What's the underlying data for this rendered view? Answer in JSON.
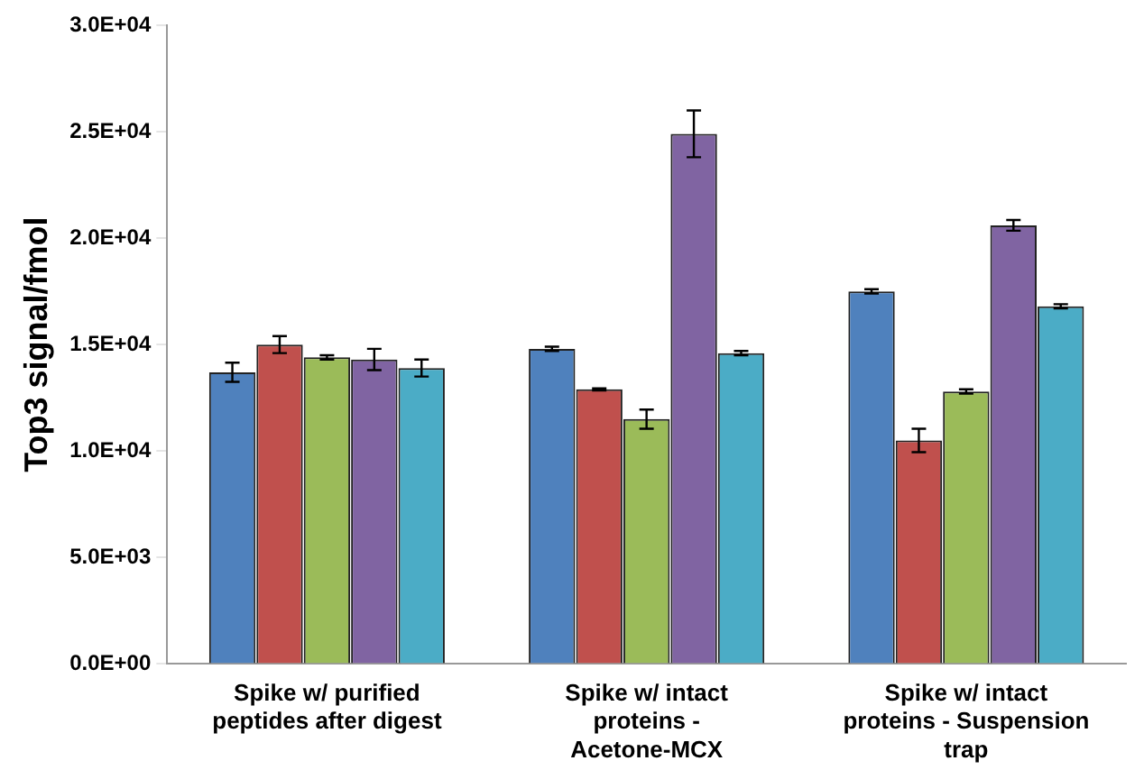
{
  "chart_data": {
    "type": "bar",
    "ylabel": "Top3 signal/fmol",
    "categories": [
      "Spike w/ purified peptides after digest",
      "Spike w/ intact proteins - Acetone-MCX",
      "Spike w/ intact proteins - Suspension trap"
    ],
    "series": [
      {
        "color": "#4f81bd",
        "values": [
          13700,
          14800,
          17500
        ],
        "errors": [
          450,
          100,
          100
        ]
      },
      {
        "color": "#c0504d",
        "values": [
          15000,
          12900,
          10500
        ],
        "errors": [
          400,
          50,
          550
        ]
      },
      {
        "color": "#9bbb59",
        "values": [
          14400,
          11500,
          12800
        ],
        "errors": [
          100,
          450,
          100
        ]
      },
      {
        "color": "#8064a2",
        "values": [
          14300,
          24900,
          20600
        ],
        "errors": [
          500,
          1100,
          250
        ]
      },
      {
        "color": "#4bacc6",
        "values": [
          13900,
          14600,
          16800
        ],
        "errors": [
          400,
          100,
          100
        ]
      }
    ],
    "ylim": [
      0,
      30000
    ],
    "yticks": [
      {
        "value": 0,
        "label": "0.0E+00"
      },
      {
        "value": 5000,
        "label": "5.0E+03"
      },
      {
        "value": 10000,
        "label": "1.0E+04"
      },
      {
        "value": 15000,
        "label": "1.5E+04"
      },
      {
        "value": 20000,
        "label": "2.0E+04"
      },
      {
        "value": 25000,
        "label": "2.5E+04"
      },
      {
        "value": 30000,
        "label": "3.0E+04"
      }
    ],
    "grid": false,
    "legend": false
  }
}
